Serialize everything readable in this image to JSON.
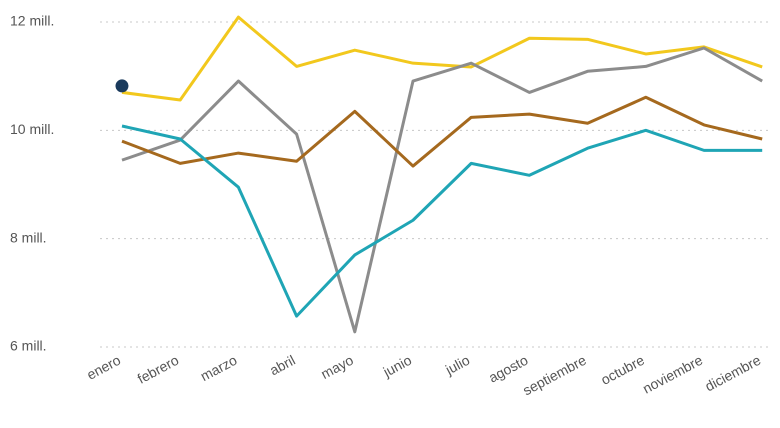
{
  "chart_data": {
    "type": "line",
    "categories": [
      "enero",
      "febrero",
      "marzo",
      "abril",
      "mayo",
      "junio",
      "julio",
      "agosto",
      "septiembre",
      "octubre",
      "noviembre",
      "diciembre"
    ],
    "series": [
      {
        "color": "#f2c81d",
        "values": [
          10.7,
          10.56,
          12.09,
          11.18,
          11.48,
          11.24,
          11.17,
          11.7,
          11.68,
          11.41,
          11.54,
          11.17
        ]
      },
      {
        "color": "#8c8c8c",
        "values": [
          9.45,
          9.82,
          10.91,
          9.93,
          6.28,
          10.91,
          11.24,
          10.7,
          11.09,
          11.18,
          11.52,
          10.91
        ]
      },
      {
        "color": "#a5691e",
        "values": [
          9.8,
          9.39,
          9.58,
          9.43,
          10.35,
          9.34,
          10.24,
          10.3,
          10.13,
          10.61,
          10.1,
          9.84
        ]
      },
      {
        "color": "#1fa5b5",
        "values": [
          10.08,
          9.84,
          8.95,
          6.57,
          7.7,
          8.34,
          9.39,
          9.17,
          9.67,
          10.0,
          9.63,
          9.63
        ]
      }
    ],
    "marker": {
      "value": 10.82,
      "color": "#1a3a5c"
    },
    "ylim": [
      6,
      12
    ],
    "yticks": [
      {
        "value": 6,
        "label": "6 mill."
      },
      {
        "value": 8,
        "label": "8 mill."
      },
      {
        "value": 10,
        "label": "10 mill."
      },
      {
        "value": 12,
        "label": "12 mill."
      }
    ],
    "grid": true
  }
}
